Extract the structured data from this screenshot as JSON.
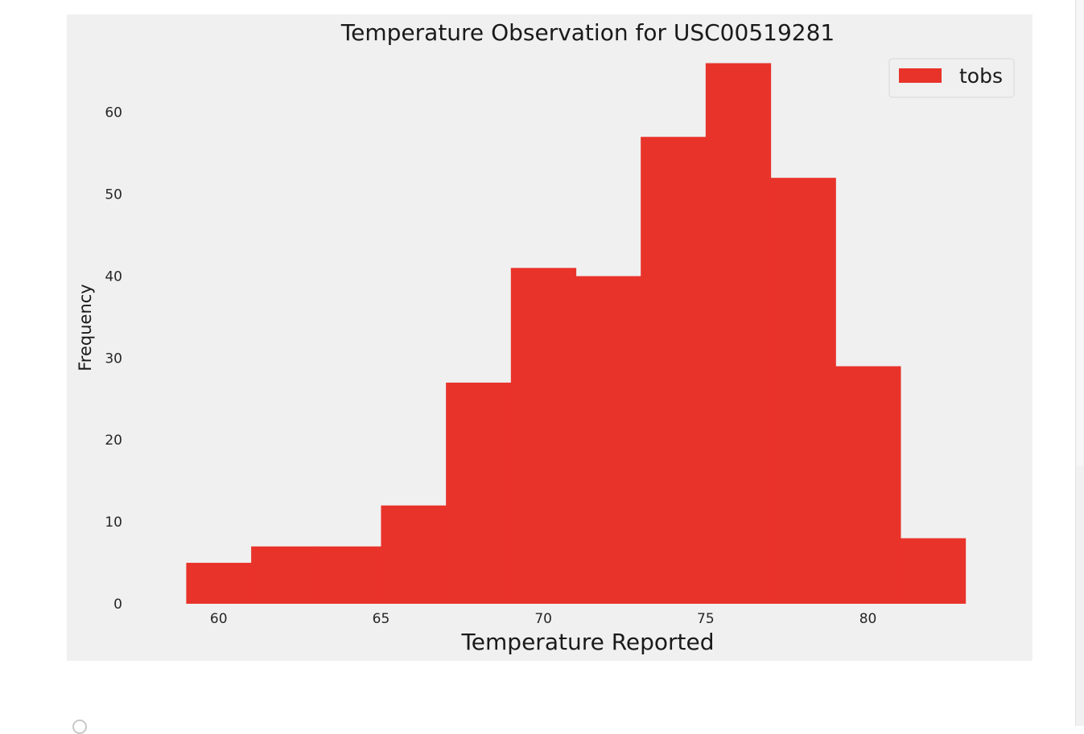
{
  "chart_data": {
    "type": "bar",
    "title": "Temperature Observation for USC00519281",
    "xlabel": "Temperature Reported",
    "ylabel": "Frequency",
    "bin_edges": [
      59,
      61,
      63,
      65,
      67,
      69,
      71,
      73,
      75,
      77,
      79,
      81,
      83
    ],
    "values": [
      5,
      7,
      7,
      12,
      27,
      41,
      40,
      57,
      66,
      52,
      29,
      8
    ],
    "xlim": [
      57.8,
      84.2
    ],
    "ylim": [
      0,
      69
    ],
    "xticks": [
      60,
      65,
      70,
      75,
      80
    ],
    "yticks": [
      0,
      10,
      20,
      30,
      40,
      50,
      60
    ],
    "series": [
      {
        "name": "tobs",
        "color": "#e8332a"
      }
    ],
    "legend_position": "top-right",
    "grid": false,
    "background": "#f0f0f0"
  }
}
